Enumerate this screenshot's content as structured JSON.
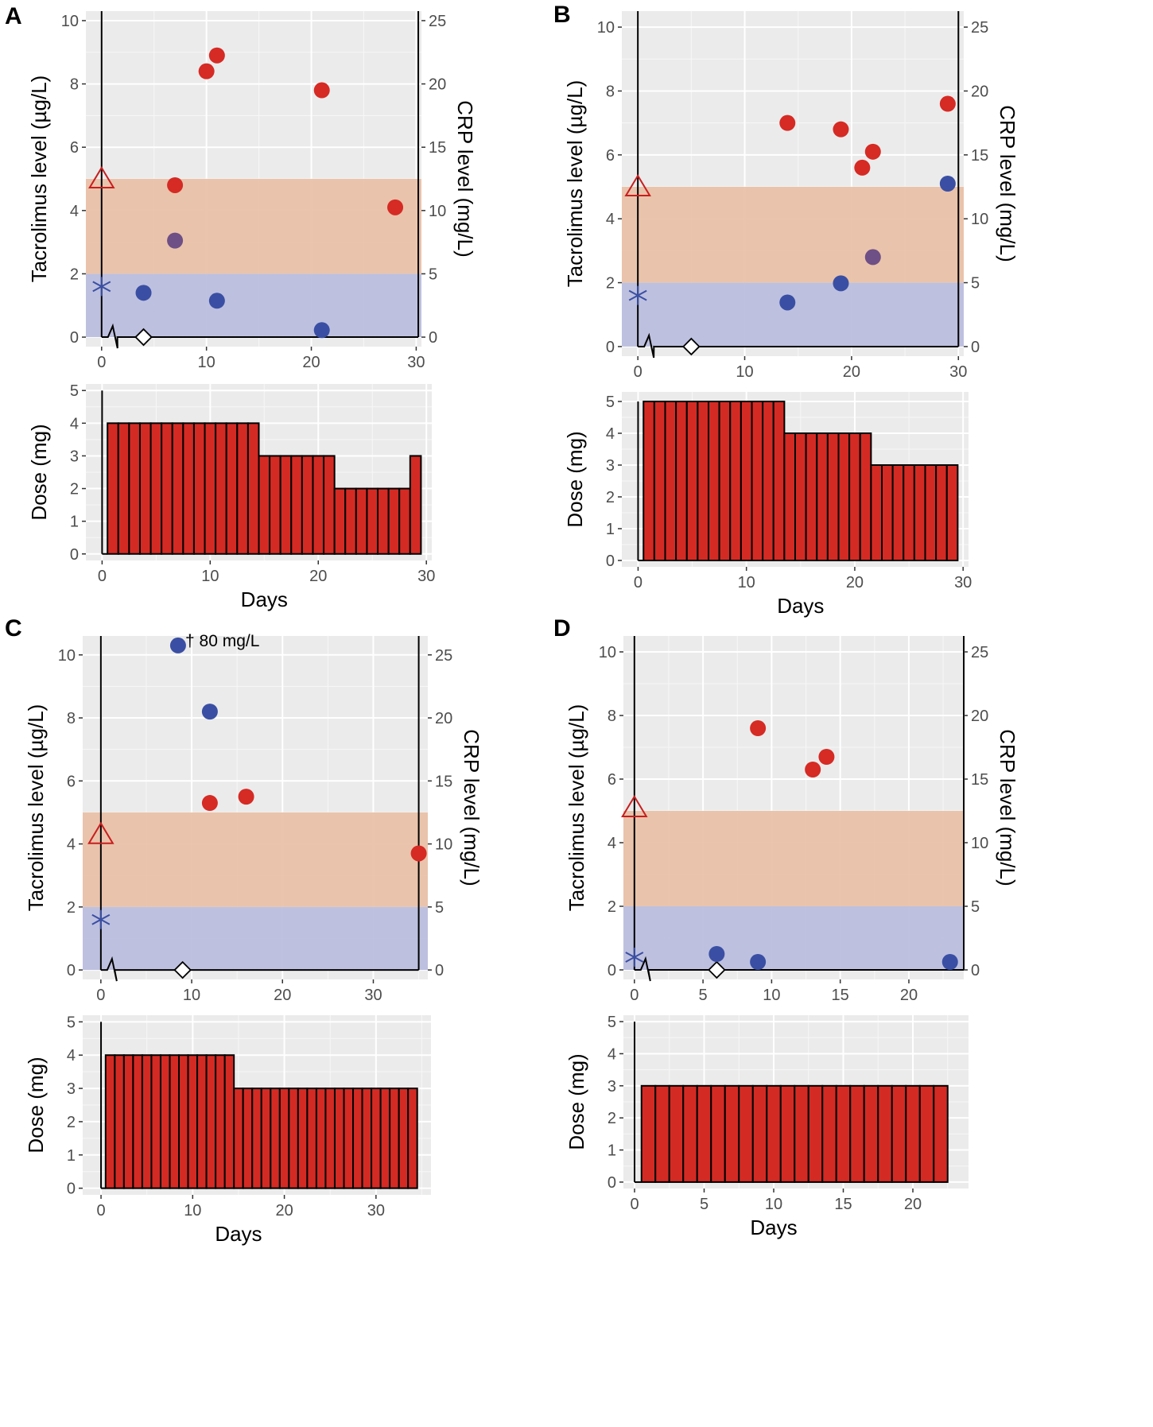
{
  "figure": {
    "legend_colors": {
      "tacrolimus_point": "#d62a24",
      "crp_point": "#3a4fa3",
      "overlap_point": "#6e4f86",
      "tacrolimus_band": "#e8bfa5",
      "crp_band": "#b9bcdd",
      "dose_bar": "#d42a24",
      "panel_bg": "#ebebeb",
      "triangle": "#c81e1e",
      "asterisk": "#3a4fa3"
    }
  },
  "chart_data": [
    {
      "panel": "A",
      "type": "scatter+bar",
      "top": {
        "xlabel": "",
        "ylabel_left": "Tacrolimus level (µg/L)",
        "ylabel_right": "CRP level (mg/L)",
        "xlim": [
          -1.5,
          30.5
        ],
        "ylim": [
          -0.3,
          10.3
        ],
        "xticks": [
          0,
          10,
          20,
          30
        ],
        "yticks_left": [
          0,
          2,
          4,
          6,
          8,
          10
        ],
        "yticks_right": [
          0,
          5,
          10,
          15,
          20,
          25
        ],
        "right_axis_day": 30.2,
        "right_axis_top": 10.3,
        "tacrolimus_band": [
          2,
          5
        ],
        "crp_band": [
          0,
          2
        ],
        "triangle": {
          "x": 0,
          "y": 5
        },
        "asterisk": {
          "x": 0,
          "y": 1.6
        },
        "diamond": {
          "x": 4,
          "y": 0
        },
        "break_x": 1.5,
        "series": [
          {
            "name": "Tacrolimus",
            "points": [
              [
                7,
                4.8
              ],
              [
                10,
                8.4
              ],
              [
                11,
                8.9
              ],
              [
                21,
                7.8
              ],
              [
                28,
                4.1
              ]
            ]
          },
          {
            "name": "CRP",
            "points": [
              [
                4,
                1.4
              ],
              [
                11,
                1.15
              ],
              [
                21,
                0.22
              ]
            ]
          },
          {
            "name": "Overlap",
            "points": [
              [
                7,
                3.05
              ]
            ]
          }
        ]
      },
      "bottom": {
        "xlabel": "Days",
        "ylabel": "Dose (mg)",
        "xlim": [
          -1.5,
          30.5
        ],
        "ylim": [
          -0.2,
          5.2
        ],
        "xticks": [
          0,
          10,
          20,
          30
        ],
        "yticks": [
          0,
          1,
          2,
          3,
          4,
          5
        ],
        "doses": [
          4,
          4,
          4,
          4,
          4,
          4,
          4,
          4,
          4,
          4,
          4,
          4,
          4,
          4,
          3,
          3,
          3,
          3,
          3,
          3,
          3,
          2,
          2,
          2,
          2,
          2,
          2,
          2,
          3
        ]
      }
    },
    {
      "panel": "B",
      "type": "scatter+bar",
      "top": {
        "xlabel": "",
        "ylabel_left": "Tacrolimus level (µg/L)",
        "ylabel_right": "CRP level (mg/L)",
        "xlim": [
          -1.5,
          30.5
        ],
        "ylim": [
          -0.3,
          10.5
        ],
        "xticks": [
          0,
          10,
          20,
          30
        ],
        "yticks_left": [
          0,
          2,
          4,
          6,
          8,
          10
        ],
        "yticks_right": [
          0,
          5,
          10,
          15,
          20,
          25
        ],
        "right_axis_day": 30.0,
        "right_axis_top": 10.5,
        "tacrolimus_band": [
          2,
          5
        ],
        "crp_band": [
          0,
          2
        ],
        "triangle": {
          "x": 0,
          "y": 5
        },
        "asterisk": {
          "x": 0,
          "y": 1.6
        },
        "diamond": {
          "x": 5,
          "y": 0
        },
        "break_x": 1.5,
        "series": [
          {
            "name": "Tacrolimus",
            "points": [
              [
                14,
                7.0
              ],
              [
                19,
                6.8
              ],
              [
                21,
                5.6
              ],
              [
                22,
                6.1
              ],
              [
                29,
                7.6
              ]
            ]
          },
          {
            "name": "CRP",
            "points": [
              [
                14,
                1.38
              ],
              [
                19,
                1.98
              ],
              [
                29,
                5.1
              ]
            ]
          },
          {
            "name": "Overlap",
            "points": [
              [
                22,
                2.8
              ]
            ]
          }
        ]
      },
      "bottom": {
        "xlabel": "Days",
        "ylabel": "Dose (mg)",
        "xlim": [
          -1.5,
          30.5
        ],
        "ylim": [
          -0.2,
          5.3
        ],
        "xticks": [
          0,
          10,
          20,
          30
        ],
        "yticks": [
          0,
          1,
          2,
          3,
          4,
          5
        ],
        "doses": [
          5,
          5,
          5,
          5,
          5,
          5,
          5,
          5,
          5,
          5,
          5,
          5,
          5,
          4,
          4,
          4,
          4,
          4,
          4,
          4,
          4,
          3,
          3,
          3,
          3,
          3,
          3,
          3,
          3
        ]
      }
    },
    {
      "panel": "C",
      "type": "scatter+bar",
      "top": {
        "xlabel": "",
        "ylabel_left": "Tacrolimus level (µg/L)",
        "ylabel_right": "CRP level (mg/L)",
        "xlim": [
          -2,
          36
        ],
        "ylim": [
          -0.3,
          10.6
        ],
        "xticks": [
          0,
          10,
          20,
          30
        ],
        "yticks_left": [
          0,
          2,
          4,
          6,
          8,
          10
        ],
        "yticks_right": [
          0,
          5,
          10,
          15,
          20,
          25
        ],
        "right_axis_day": 35.0,
        "right_axis_top": 10.6,
        "tacrolimus_band": [
          2,
          5
        ],
        "crp_band": [
          0,
          2
        ],
        "triangle": {
          "x": 0,
          "y": 4.3
        },
        "asterisk": {
          "x": 0,
          "y": 1.6
        },
        "diamond": {
          "x": 9,
          "y": 0
        },
        "break_x": 1.5,
        "annotation": {
          "text": "† 80 mg/L",
          "x": 9.3,
          "y": 10.45
        },
        "series": [
          {
            "name": "Tacrolimus",
            "points": [
              [
                12,
                5.3
              ],
              [
                16,
                5.5
              ],
              [
                35,
                3.7
              ]
            ]
          },
          {
            "name": "CRP",
            "points": [
              [
                8.5,
                10.3
              ],
              [
                12,
                8.2
              ]
            ]
          },
          {
            "name": "Overlap",
            "points": []
          }
        ]
      },
      "bottom": {
        "xlabel": "Days",
        "ylabel": "Dose (mg)",
        "xlim": [
          -2,
          36
        ],
        "ylim": [
          -0.2,
          5.2
        ],
        "xticks": [
          0,
          10,
          20,
          30
        ],
        "yticks": [
          0,
          1,
          2,
          3,
          4,
          5
        ],
        "doses": [
          4,
          4,
          4,
          4,
          4,
          4,
          4,
          4,
          4,
          4,
          4,
          4,
          4,
          4,
          3,
          3,
          3,
          3,
          3,
          3,
          3,
          3,
          3,
          3,
          3,
          3,
          3,
          3,
          3,
          3,
          3,
          3,
          3,
          3
        ]
      }
    },
    {
      "panel": "D",
      "type": "scatter+bar",
      "top": {
        "xlabel": "",
        "ylabel_left": "Tacrolimus level (µg/L)",
        "ylabel_right": "CRP level (mg/L)",
        "xlim": [
          -0.8,
          24
        ],
        "ylim": [
          -0.3,
          10.5
        ],
        "xticks": [
          0,
          5,
          10,
          15,
          20
        ],
        "yticks_left": [
          0,
          2,
          4,
          6,
          8,
          10
        ],
        "yticks_right": [
          0,
          5,
          10,
          15,
          20,
          25
        ],
        "right_axis_day": 24.0,
        "right_axis_top": 10.5,
        "tacrolimus_band": [
          2,
          5
        ],
        "crp_band": [
          0,
          2
        ],
        "triangle": {
          "x": 0,
          "y": 5.1
        },
        "asterisk": {
          "x": 0,
          "y": 0.4
        },
        "diamond": {
          "x": 6,
          "y": 0
        },
        "break_x": 1.0,
        "series": [
          {
            "name": "Tacrolimus",
            "points": [
              [
                9,
                7.6
              ],
              [
                13,
                6.3
              ],
              [
                14,
                6.7
              ]
            ]
          },
          {
            "name": "CRP",
            "points": [
              [
                6,
                0.5
              ],
              [
                9,
                0.25
              ],
              [
                23,
                0.25
              ]
            ]
          },
          {
            "name": "Overlap",
            "points": []
          }
        ]
      },
      "bottom": {
        "xlabel": "Days",
        "ylabel": "Dose (mg)",
        "xlim": [
          -0.8,
          24
        ],
        "ylim": [
          -0.2,
          5.2
        ],
        "xticks": [
          0,
          5,
          10,
          15,
          20
        ],
        "yticks": [
          0,
          1,
          2,
          3,
          4,
          5
        ],
        "doses": [
          3,
          3,
          3,
          3,
          3,
          3,
          3,
          3,
          3,
          3,
          3,
          3,
          3,
          3,
          3,
          3,
          3,
          3,
          3,
          3,
          3,
          3
        ]
      }
    }
  ]
}
